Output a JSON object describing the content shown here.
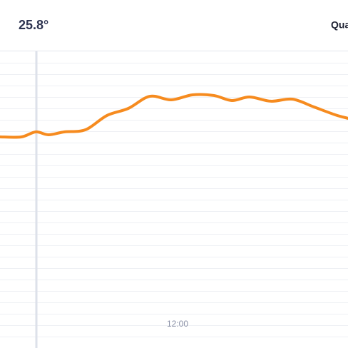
{
  "header": {
    "reading": "25.8°",
    "tab": "Qua"
  },
  "chart_data": {
    "type": "line",
    "x": [
      0,
      30,
      50,
      68,
      90,
      120,
      150,
      180,
      210,
      240,
      270,
      300,
      325,
      350,
      380,
      410,
      440,
      470,
      488
    ],
    "series": [
      {
        "color": "#f68b1f",
        "values": [
          18.5,
          18.5,
          18.94,
          18.69,
          18.94,
          19.13,
          20.38,
          21.0,
          22.06,
          21.75,
          22.19,
          22.13,
          21.69,
          22.0,
          21.63,
          21.81,
          21.13,
          20.44,
          20.13
        ]
      }
    ],
    "xlim": [
      0,
      488
    ],
    "xticks": [
      {
        "value": 249,
        "label": "12:00"
      }
    ],
    "ylim": [
      0,
      26
    ],
    "yticks": [
      1,
      2,
      3,
      4,
      5,
      6,
      7,
      8,
      9,
      10,
      11,
      12,
      13,
      14,
      15,
      16,
      17,
      18,
      19,
      20,
      21,
      22,
      23,
      24,
      25
    ],
    "grid": true,
    "cursor_x": 51
  }
}
